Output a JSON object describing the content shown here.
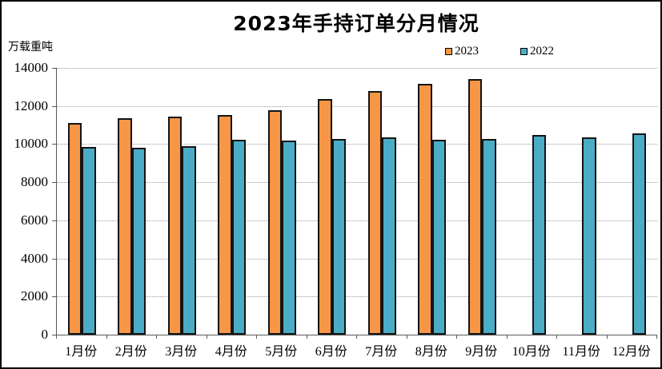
{
  "title": "2023年手持订单分月情况",
  "chart_data": {
    "type": "bar",
    "title": "2023年手持订单分月情况",
    "xlabel": "",
    "ylabel": "万载重吨",
    "categories": [
      "1月份",
      "2月份",
      "3月份",
      "4月份",
      "5月份",
      "6月份",
      "7月份",
      "8月份",
      "9月份",
      "10月份",
      "11月份",
      "12月份"
    ],
    "series": [
      {
        "name": "2023",
        "color": "#F79646",
        "values": [
          11109,
          11354,
          11452,
          11510,
          11799,
          12377,
          12790,
          13156,
          13393,
          null,
          null,
          null
        ]
      },
      {
        "name": "2022",
        "color": "#4BACC6",
        "values": [
          9858,
          9798,
          9897,
          10247,
          10190,
          10274,
          10366,
          10210,
          10264,
          10459,
          10355,
          10557
        ]
      }
    ],
    "ylim": [
      0,
      14000
    ],
    "yticks": [
      0,
      2000,
      4000,
      6000,
      8000,
      10000,
      12000,
      14000
    ],
    "grid": true,
    "gridline_style": "dotted",
    "legend_position": "top-right"
  },
  "colors": {
    "bar_border": "#141414",
    "axis": "#595959",
    "gridline": "#9a9a9a",
    "background": "#ffffff",
    "text": "#000000"
  }
}
